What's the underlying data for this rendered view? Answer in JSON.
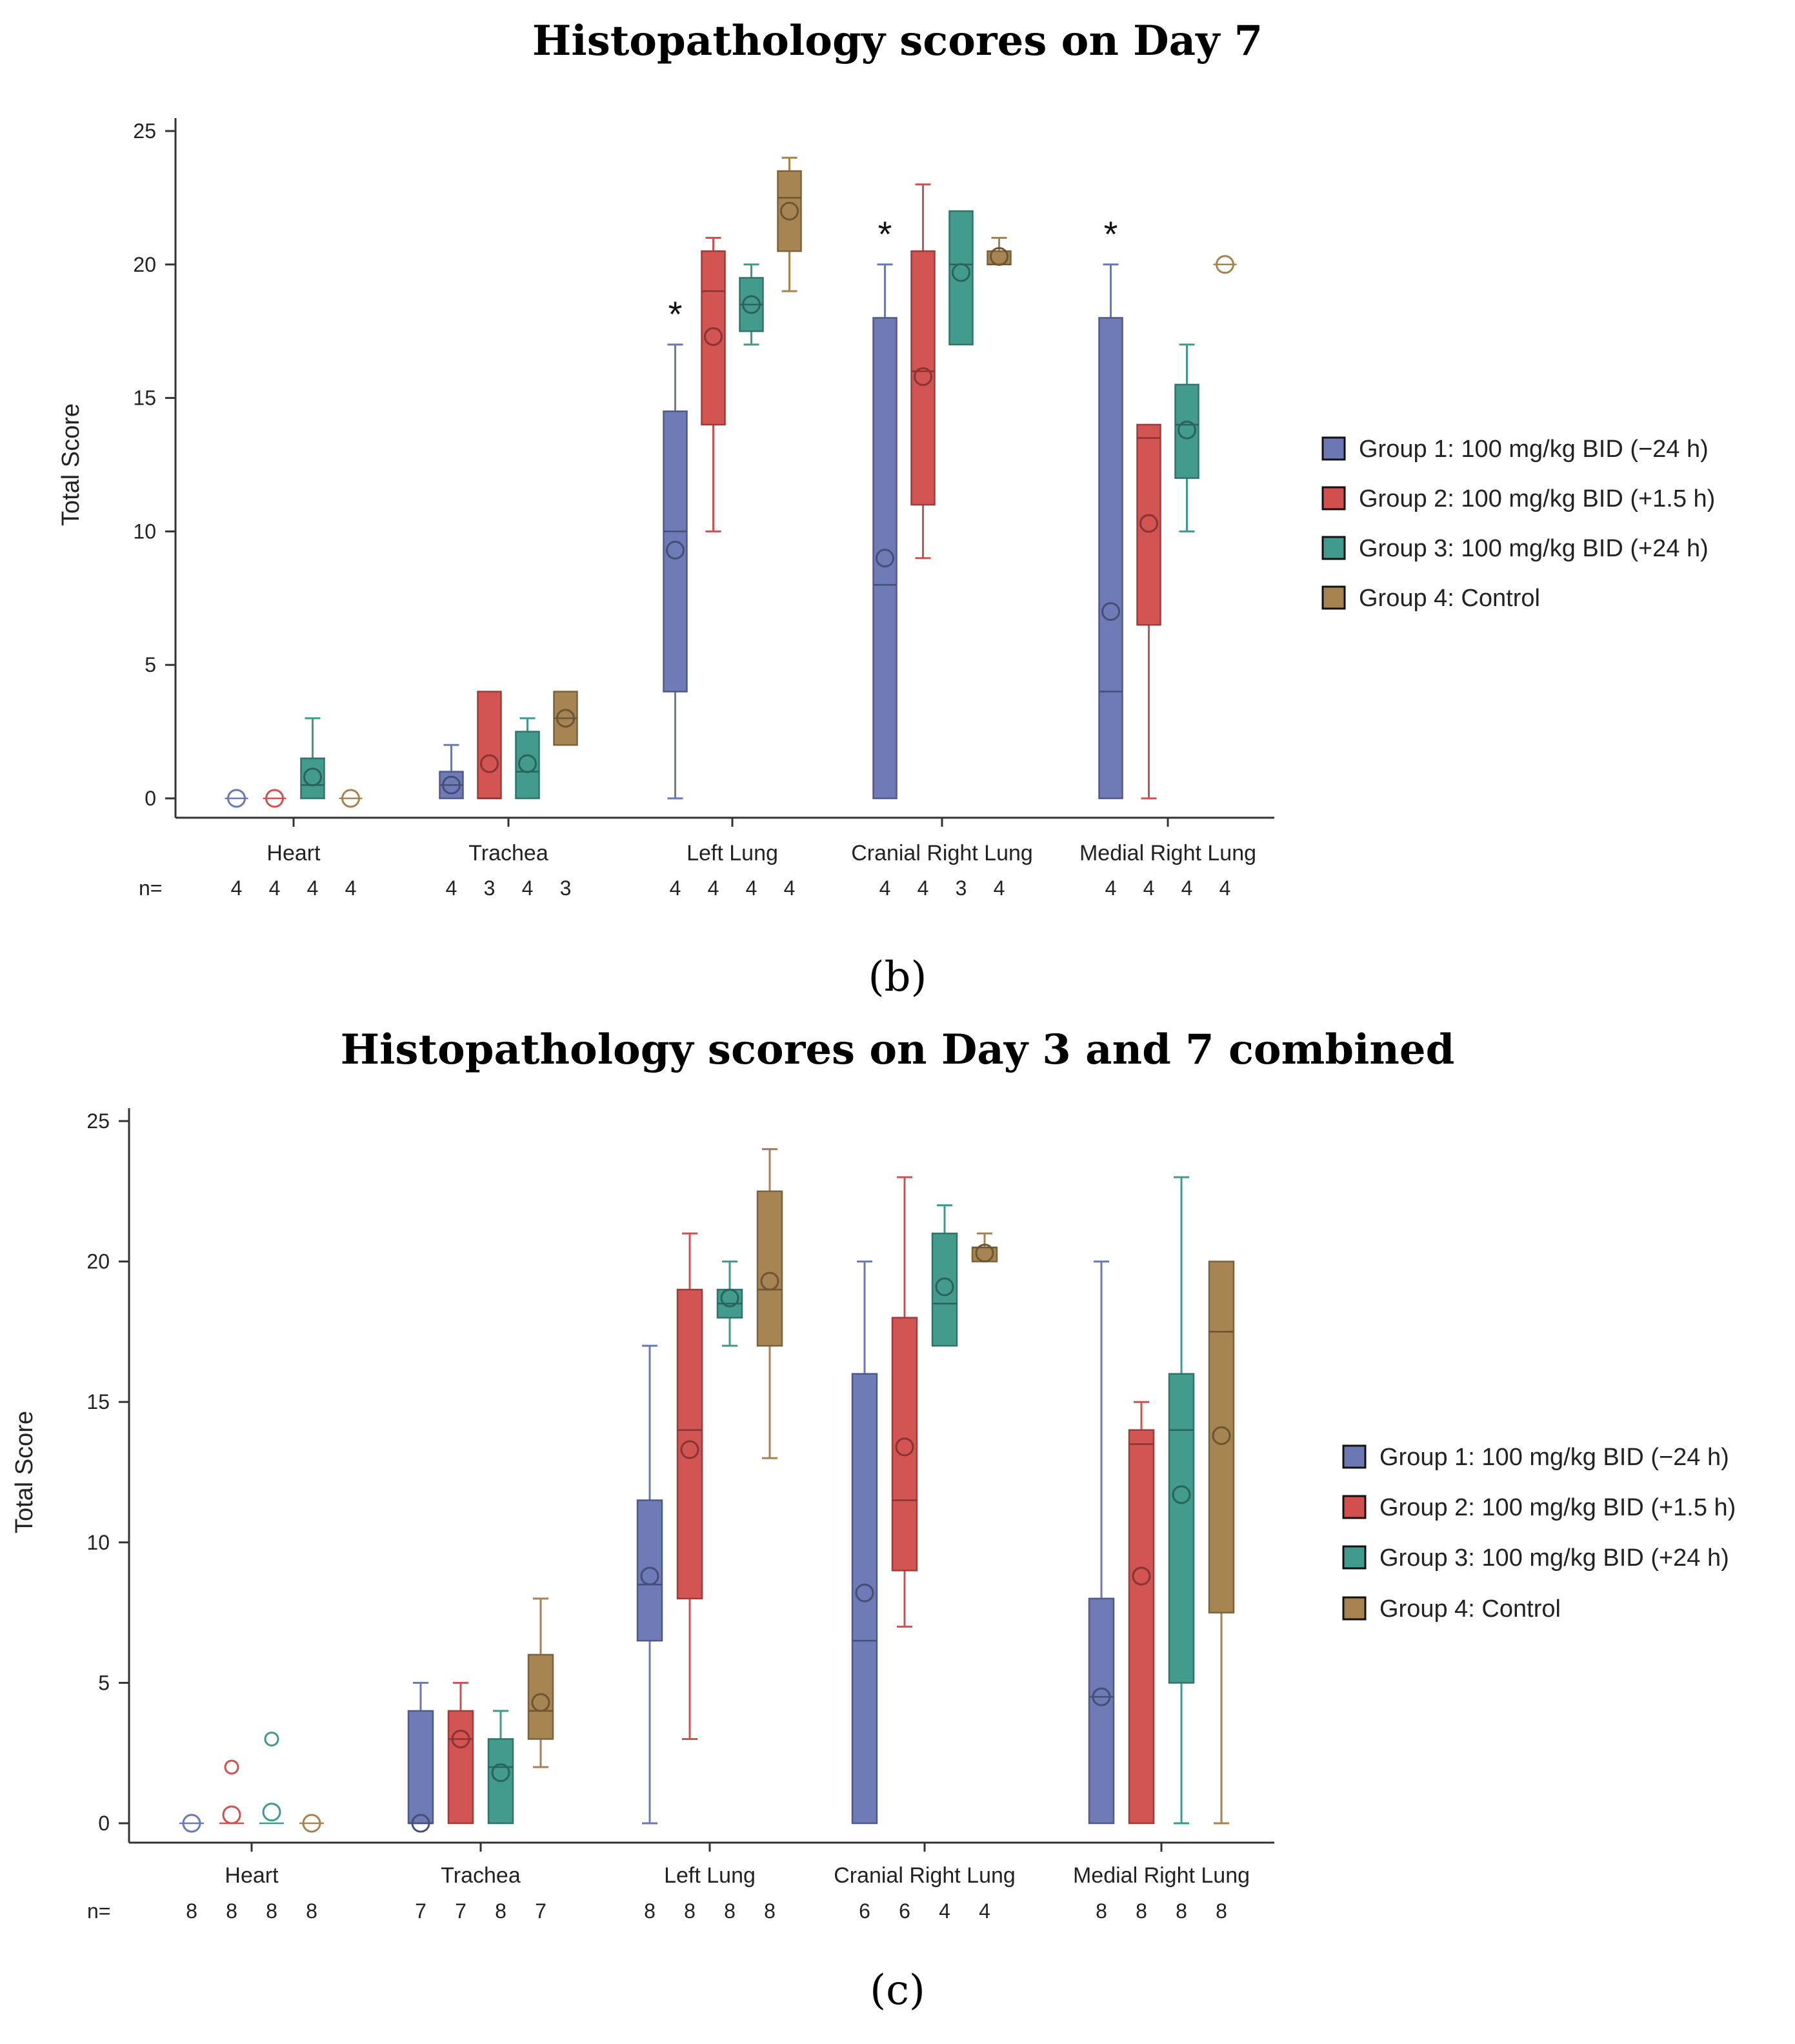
{
  "colors": {
    "group1": "#6b78b4",
    "group2": "#d1504f",
    "group3": "#3f998c",
    "group4": "#a5824f"
  },
  "chart_data": [
    {
      "type": "box",
      "panel_label": "(b)",
      "title": "Histopathology scores on Day 7",
      "ylabel": "Total Score",
      "ylim": [
        0,
        25
      ],
      "yticks": [
        0,
        5,
        10,
        15,
        20,
        25
      ],
      "n_prefix": "n=",
      "categories": [
        "Heart",
        "Trachea",
        "Left Lung",
        "Cranial Right Lung",
        "Medial Right Lung"
      ],
      "legend": [
        "Group 1: 100 mg/kg BID (−24 h)",
        "Group 2: 100 mg/kg BID (+1.5 h)",
        "Group 3: 100 mg/kg BID (+24 h)",
        "Group 4: Control"
      ],
      "annotations": [
        {
          "text": "*",
          "category": "Left Lung",
          "group": 0
        },
        {
          "text": "*",
          "category": "Cranial Right Lung",
          "group": 0
        },
        {
          "text": "*",
          "category": "Medial Right Lung",
          "group": 0
        }
      ],
      "series": [
        {
          "name": "Group 1: 100 mg/kg BID (−24 h)",
          "n": [
            "4",
            "4",
            "4",
            "4",
            "4"
          ],
          "boxes": [
            {
              "min": 0,
              "q1": 0,
              "median": 0,
              "q3": 0,
              "max": 0,
              "mean": 0
            },
            {
              "min": 0,
              "q1": 0,
              "median": 0.5,
              "q3": 1,
              "max": 2,
              "mean": 0.5
            },
            {
              "min": 0,
              "q1": 4,
              "median": 10,
              "q3": 14.5,
              "max": 17,
              "mean": 9.3
            },
            {
              "min": 0,
              "q1": 0,
              "median": 8,
              "q3": 18,
              "max": 20,
              "mean": 9
            },
            {
              "min": 0,
              "q1": 0,
              "median": 4,
              "q3": 18,
              "max": 20,
              "mean": 7
            }
          ]
        },
        {
          "name": "Group 2: 100 mg/kg BID (+1.5 h)",
          "n": [
            "4",
            "3",
            "4",
            "4",
            "4"
          ],
          "boxes": [
            {
              "min": 0,
              "q1": 0,
              "median": 0,
              "q3": 0,
              "max": 0,
              "mean": 0
            },
            {
              "min": 0,
              "q1": 0,
              "median": 0,
              "q3": 4,
              "max": 4,
              "mean": 1.3
            },
            {
              "min": 10,
              "q1": 14,
              "median": 19,
              "q3": 20.5,
              "max": 21,
              "mean": 17.3
            },
            {
              "min": 9,
              "q1": 11,
              "median": 16,
              "q3": 20.5,
              "max": 23,
              "mean": 15.8
            },
            {
              "min": 0,
              "q1": 6.5,
              "median": 13.5,
              "q3": 14,
              "max": 14,
              "mean": 10.3
            }
          ]
        },
        {
          "name": "Group 3: 100 mg/kg BID (+24 h)",
          "n": [
            "4",
            "4",
            "4",
            "3",
            "4"
          ],
          "boxes": [
            {
              "min": 0,
              "q1": 0,
              "median": 0.5,
              "q3": 1.5,
              "max": 3,
              "mean": 0.8
            },
            {
              "min": 0,
              "q1": 0,
              "median": 1,
              "q3": 2.5,
              "max": 3,
              "mean": 1.3
            },
            {
              "min": 17,
              "q1": 17.5,
              "median": 18.5,
              "q3": 19.5,
              "max": 20,
              "mean": 18.5
            },
            {
              "min": 17,
              "q1": 17,
              "median": 20,
              "q3": 22,
              "max": 22,
              "mean": 19.7
            },
            {
              "min": 10,
              "q1": 12,
              "median": 14,
              "q3": 15.5,
              "max": 17,
              "mean": 13.8
            }
          ]
        },
        {
          "name": "Group 4: Control",
          "n": [
            "4",
            "3",
            "4",
            "4",
            "4"
          ],
          "boxes": [
            {
              "min": 0,
              "q1": 0,
              "median": 0,
              "q3": 0,
              "max": 0,
              "mean": 0
            },
            {
              "min": 2,
              "q1": 2,
              "median": 3,
              "q3": 4,
              "max": 4,
              "mean": 3
            },
            {
              "min": 19,
              "q1": 20.5,
              "median": 22.5,
              "q3": 23.5,
              "max": 24,
              "mean": 22
            },
            {
              "min": 20,
              "q1": 20,
              "median": 20,
              "q3": 20.5,
              "max": 21,
              "mean": 20.3
            },
            {
              "min": 20,
              "q1": 20,
              "median": 20,
              "q3": 20,
              "max": 20,
              "mean": 20
            }
          ]
        }
      ]
    },
    {
      "type": "box",
      "panel_label": "(c)",
      "title": "Histopathology scores on Day 3 and 7 combined",
      "ylabel": "Total Score",
      "ylim": [
        0,
        25
      ],
      "yticks": [
        0,
        5,
        10,
        15,
        20,
        25
      ],
      "n_prefix": "n=",
      "categories": [
        "Heart",
        "Trachea",
        "Left Lung",
        "Cranial Right Lung",
        "Medial Right Lung"
      ],
      "legend": [
        "Group 1: 100 mg/kg BID (−24 h)",
        "Group 2: 100 mg/kg BID (+1.5 h)",
        "Group 3: 100 mg/kg BID (+24 h)",
        "Group 4: Control"
      ],
      "annotations": [],
      "series": [
        {
          "name": "Group 1: 100 mg/kg BID (−24 h)",
          "n": [
            "8",
            "7",
            "8",
            "6",
            "8"
          ],
          "boxes": [
            {
              "min": 0,
              "q1": 0,
              "median": 0,
              "q3": 0,
              "max": 0,
              "mean": 0
            },
            {
              "min": 0,
              "q1": 0,
              "median": 0,
              "q3": 4,
              "max": 5,
              "mean": 0
            },
            {
              "min": 0,
              "q1": 6.5,
              "median": 8.5,
              "q3": 11.5,
              "max": 17,
              "mean": 8.8
            },
            {
              "min": 0,
              "q1": 0,
              "median": 6.5,
              "q3": 16,
              "max": 20,
              "mean": 8.2
            },
            {
              "min": 0,
              "q1": 0,
              "median": 4.5,
              "q3": 8,
              "max": 20,
              "mean": 4.5
            }
          ]
        },
        {
          "name": "Group 2: 100 mg/kg BID (+1.5 h)",
          "n": [
            "8",
            "7",
            "8",
            "6",
            "8"
          ],
          "boxes": [
            {
              "min": 0,
              "q1": 0,
              "median": 0,
              "q3": 0,
              "max": 0,
              "mean": 0.3,
              "outliers": [
                2
              ]
            },
            {
              "min": 0,
              "q1": 0,
              "median": 3,
              "q3": 4,
              "max": 5,
              "mean": 3
            },
            {
              "min": 3,
              "q1": 8,
              "median": 14,
              "q3": 19,
              "max": 21,
              "mean": 13.3
            },
            {
              "min": 7,
              "q1": 9,
              "median": 11.5,
              "q3": 18,
              "max": 23,
              "mean": 13.4
            },
            {
              "min": 0,
              "q1": 0,
              "median": 13.5,
              "q3": 14,
              "max": 15,
              "mean": 8.8
            }
          ]
        },
        {
          "name": "Group 3: 100 mg/kg BID (+24 h)",
          "n": [
            "8",
            "8",
            "8",
            "4",
            "8"
          ],
          "boxes": [
            {
              "min": 0,
              "q1": 0,
              "median": 0,
              "q3": 0,
              "max": 0,
              "mean": 0.4,
              "outliers": [
                3
              ]
            },
            {
              "min": 0,
              "q1": 0,
              "median": 2,
              "q3": 3,
              "max": 4,
              "mean": 1.8
            },
            {
              "min": 17,
              "q1": 18,
              "median": 18.5,
              "q3": 19,
              "max": 20,
              "mean": 18.7
            },
            {
              "min": 17,
              "q1": 17,
              "median": 18.5,
              "q3": 21,
              "max": 22,
              "mean": 19.1
            },
            {
              "min": 0,
              "q1": 5,
              "median": 14,
              "q3": 16,
              "max": 23,
              "mean": 11.7
            }
          ]
        },
        {
          "name": "Group 4: Control",
          "n": [
            "8",
            "7",
            "8",
            "4",
            "8"
          ],
          "boxes": [
            {
              "min": 0,
              "q1": 0,
              "median": 0,
              "q3": 0,
              "max": 0,
              "mean": 0
            },
            {
              "min": 2,
              "q1": 3,
              "median": 4,
              "q3": 6,
              "max": 8,
              "mean": 4.3
            },
            {
              "min": 13,
              "q1": 17,
              "median": 19,
              "q3": 22.5,
              "max": 24,
              "mean": 19.3
            },
            {
              "min": 20,
              "q1": 20,
              "median": 20.5,
              "q3": 20.5,
              "max": 21,
              "mean": 20.3
            },
            {
              "min": 0,
              "q1": 7.5,
              "median": 17.5,
              "q3": 20,
              "max": 20,
              "mean": 13.8
            }
          ]
        }
      ]
    }
  ]
}
